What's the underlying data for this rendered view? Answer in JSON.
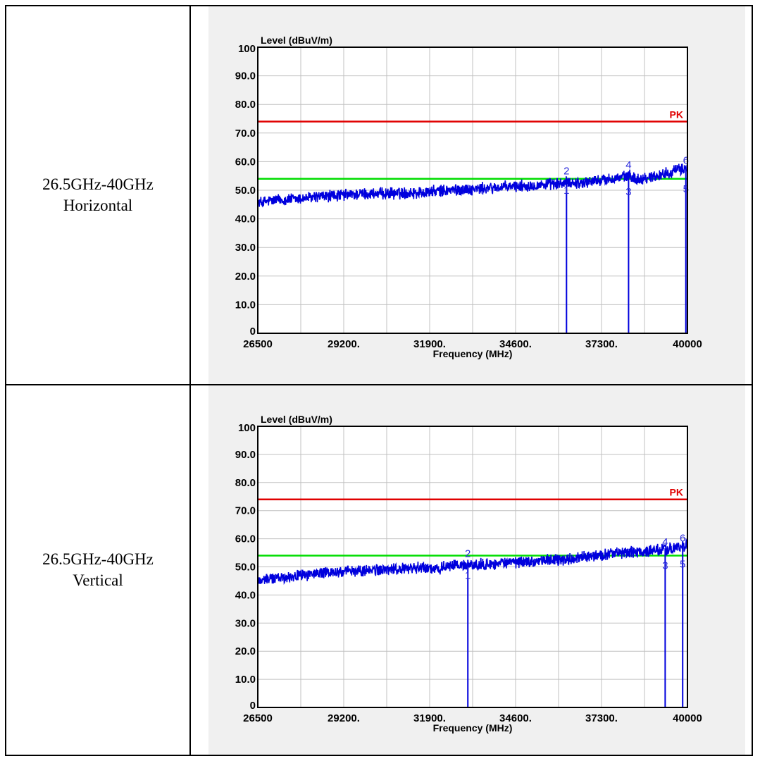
{
  "rows": [
    {
      "label_line1": "26.5GHz-40GHz",
      "label_line2": "Horizontal",
      "chart_data": {
        "type": "line",
        "ylabel": "Level (dBuV/m)",
        "xlabel": "Frequency (MHz)",
        "xlim": [
          26500,
          40000
        ],
        "ylim": [
          0,
          100
        ],
        "x_tick_labels": [
          "26500",
          "29200.",
          "31900.",
          "34600.",
          "37300.",
          "40000"
        ],
        "y_tick_labels": [
          "0",
          "10.0",
          "20.0",
          "30.0",
          "40.0",
          "50.0",
          "60.0",
          "70.0",
          "80.0",
          "90.0",
          "100"
        ],
        "grid": true,
        "limit_lines": [
          {
            "name": "PK",
            "value": 74.0,
            "color": "#e00000"
          },
          {
            "value": 54.0,
            "color": "#00dd00"
          }
        ],
        "series_color": "#0000dd",
        "series_anchor_points": [
          [
            26500,
            45.5
          ],
          [
            27000,
            46.5
          ],
          [
            27800,
            47.0
          ],
          [
            28500,
            47.8
          ],
          [
            29200,
            48.3
          ],
          [
            29800,
            48.7
          ],
          [
            30500,
            48.8
          ],
          [
            31100,
            49.0
          ],
          [
            31700,
            49.3
          ],
          [
            32400,
            49.9
          ],
          [
            33000,
            50.3
          ],
          [
            33600,
            50.6
          ],
          [
            34200,
            51.0
          ],
          [
            34800,
            51.5
          ],
          [
            35400,
            51.9
          ],
          [
            36000,
            52.3
          ],
          [
            36300,
            52.8
          ],
          [
            36600,
            52.5
          ],
          [
            37000,
            53.2
          ],
          [
            37500,
            53.8
          ],
          [
            38000,
            54.6
          ],
          [
            38200,
            55.0
          ],
          [
            38400,
            53.8
          ],
          [
            38800,
            54.5
          ],
          [
            39200,
            55.5
          ],
          [
            39600,
            56.8
          ],
          [
            40000,
            57.8
          ]
        ],
        "markers": [
          {
            "label": "1",
            "x": 36200,
            "y": 52.5
          },
          {
            "label": "2",
            "x": 36200,
            "y": 54.5
          },
          {
            "label": "3",
            "x": 38150,
            "y": 52.0
          },
          {
            "label": "4",
            "x": 38150,
            "y": 56.6
          },
          {
            "label": "5",
            "x": 39950,
            "y": 53.0
          },
          {
            "label": "6",
            "x": 39950,
            "y": 58.3
          }
        ]
      }
    },
    {
      "label_line1": "26.5GHz-40GHz",
      "label_line2": "Vertical",
      "chart_data": {
        "type": "line",
        "ylabel": "Level (dBuV/m)",
        "xlabel": "Frequency (MHz)",
        "xlim": [
          26500,
          40000
        ],
        "ylim": [
          0,
          100
        ],
        "x_tick_labels": [
          "26500",
          "29200.",
          "31900.",
          "34600.",
          "37300.",
          "40000"
        ],
        "y_tick_labels": [
          "0",
          "10.0",
          "20.0",
          "30.0",
          "40.0",
          "50.0",
          "60.0",
          "70.0",
          "80.0",
          "90.0",
          "100"
        ],
        "grid": true,
        "limit_lines": [
          {
            "name": "PK",
            "value": 74.0,
            "color": "#e00000"
          },
          {
            "value": 54.0,
            "color": "#00dd00"
          }
        ],
        "series_color": "#0000dd",
        "series_anchor_points": [
          [
            26500,
            45.0
          ],
          [
            27000,
            46.0
          ],
          [
            27800,
            47.0
          ],
          [
            28500,
            47.8
          ],
          [
            29200,
            48.2
          ],
          [
            29800,
            48.7
          ],
          [
            30500,
            49.0
          ],
          [
            31100,
            49.3
          ],
          [
            31700,
            49.7
          ],
          [
            32200,
            49.5
          ],
          [
            32700,
            50.5
          ],
          [
            33300,
            50.6
          ],
          [
            33800,
            51.0
          ],
          [
            34400,
            51.5
          ],
          [
            35000,
            52.0
          ],
          [
            35600,
            52.4
          ],
          [
            36100,
            52.6
          ],
          [
            36600,
            53.2
          ],
          [
            37200,
            54.0
          ],
          [
            37600,
            54.8
          ],
          [
            38100,
            55.0
          ],
          [
            38600,
            55.4
          ],
          [
            39000,
            55.8
          ],
          [
            39500,
            56.5
          ],
          [
            40000,
            57.6
          ]
        ],
        "markers": [
          {
            "label": "1",
            "x": 33100,
            "y": 49.5
          },
          {
            "label": "2",
            "x": 33100,
            "y": 52.5
          },
          {
            "label": "3",
            "x": 39300,
            "y": 53.0
          },
          {
            "label": "4",
            "x": 39300,
            "y": 56.6
          },
          {
            "label": "5",
            "x": 39850,
            "y": 53.5
          },
          {
            "label": "6",
            "x": 39850,
            "y": 58.0
          }
        ]
      }
    }
  ]
}
